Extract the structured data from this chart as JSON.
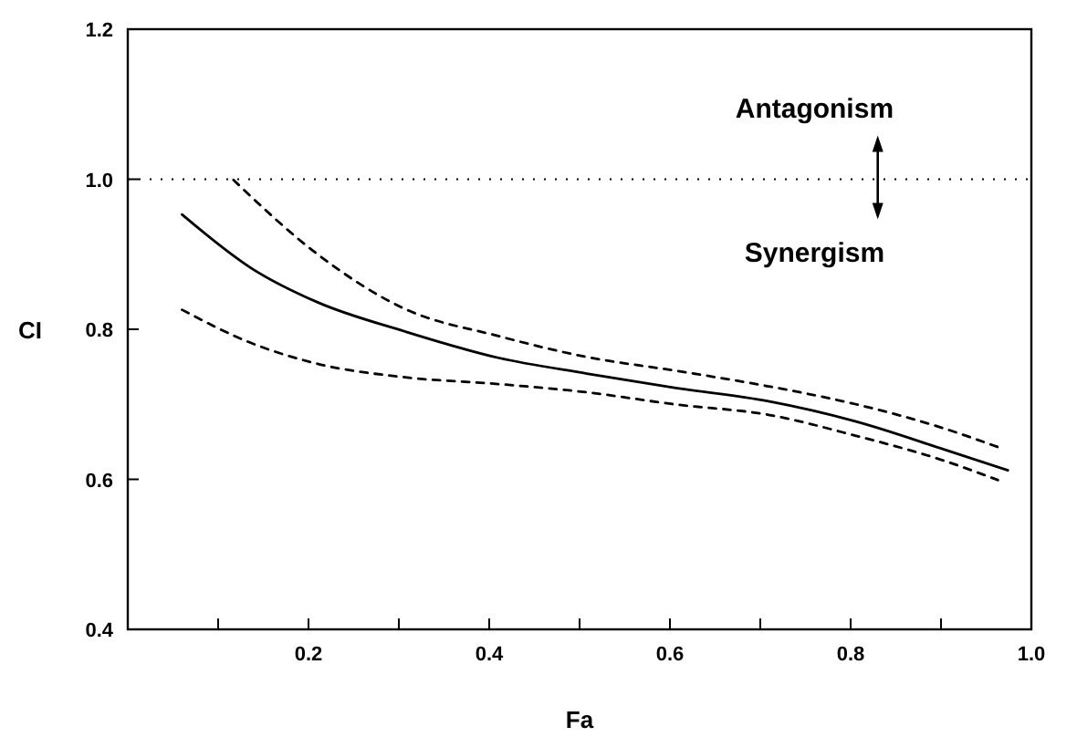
{
  "chart_data": {
    "type": "line",
    "xlabel": "Fa",
    "ylabel": "CI",
    "xlim": [
      0,
      1.0
    ],
    "ylim": [
      0.4,
      1.2
    ],
    "xticks": [
      {
        "value": 0.1,
        "label": null
      },
      0.2,
      {
        "value": 0.3,
        "label": null
      },
      0.4,
      {
        "value": 0.5,
        "label": null
      },
      0.6,
      {
        "value": 0.7,
        "label": null
      },
      0.8,
      {
        "value": 0.9,
        "label": null
      },
      {
        "value": 1.0,
        "label": "1.0"
      }
    ],
    "yticks": [
      0.4,
      0.6,
      0.8,
      {
        "value": 1.0,
        "label": "1.0"
      },
      1.2
    ],
    "grid": false,
    "ref_lines": [
      {
        "axis": "y",
        "value": 1.0,
        "line_style": "dotted",
        "color": "#000000"
      }
    ],
    "annotations": [
      "Antagonism",
      "Synergism"
    ],
    "series": [
      {
        "color": "#000000",
        "line_style": "solid",
        "x": [
          0.06,
          0.136,
          0.21,
          0.307,
          0.41,
          0.508,
          0.605,
          0.709,
          0.806,
          0.903,
          0.974
        ],
        "values": [
          0.953,
          0.882,
          0.836,
          0.797,
          0.762,
          0.741,
          0.722,
          0.704,
          0.677,
          0.64,
          0.612
        ]
      },
      {
        "color": "#000000",
        "line_style": "dashed",
        "x": [
          0.117,
          0.21,
          0.307,
          0.41,
          0.508,
          0.605,
          0.709,
          0.806,
          0.903,
          0.963
        ],
        "values": [
          0.999,
          0.9,
          0.827,
          0.791,
          0.763,
          0.745,
          0.724,
          0.7,
          0.668,
          0.643
        ]
      },
      {
        "color": "#000000",
        "line_style": "dashed",
        "x": [
          0.06,
          0.136,
          0.21,
          0.307,
          0.41,
          0.508,
          0.605,
          0.709,
          0.806,
          0.903,
          0.963
        ],
        "values": [
          0.826,
          0.782,
          0.754,
          0.736,
          0.727,
          0.716,
          0.7,
          0.686,
          0.658,
          0.625,
          0.599
        ]
      }
    ]
  }
}
